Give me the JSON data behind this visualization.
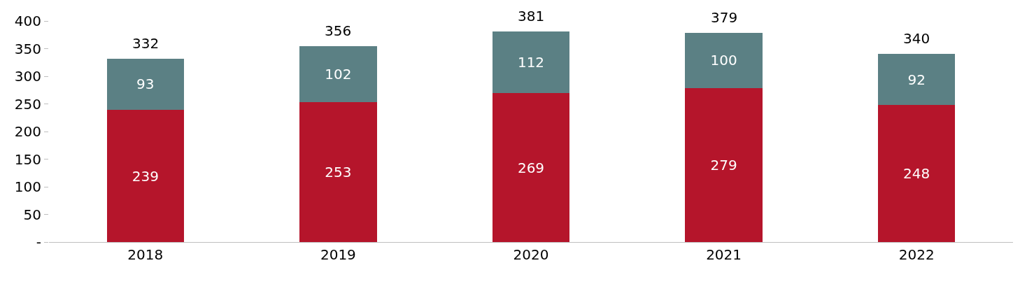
{
  "chart_data": {
    "type": "bar",
    "stacked": true,
    "categories": [
      "2018",
      "2019",
      "2020",
      "2021",
      "2022"
    ],
    "series": [
      {
        "color": "#b5152b",
        "values": [
          239,
          253,
          269,
          279,
          248
        ]
      },
      {
        "color": "#5b8084",
        "values": [
          93,
          102,
          112,
          100,
          92
        ]
      }
    ],
    "data_labels": true,
    "totals": [
      "332",
      "356",
      "381",
      "379",
      "340"
    ],
    "ylim": [
      0,
      400
    ],
    "yticks": [
      {
        "value": 0,
        "label": "-"
      },
      50,
      100,
      150,
      200,
      250,
      300,
      350,
      400
    ],
    "grid": false
  }
}
